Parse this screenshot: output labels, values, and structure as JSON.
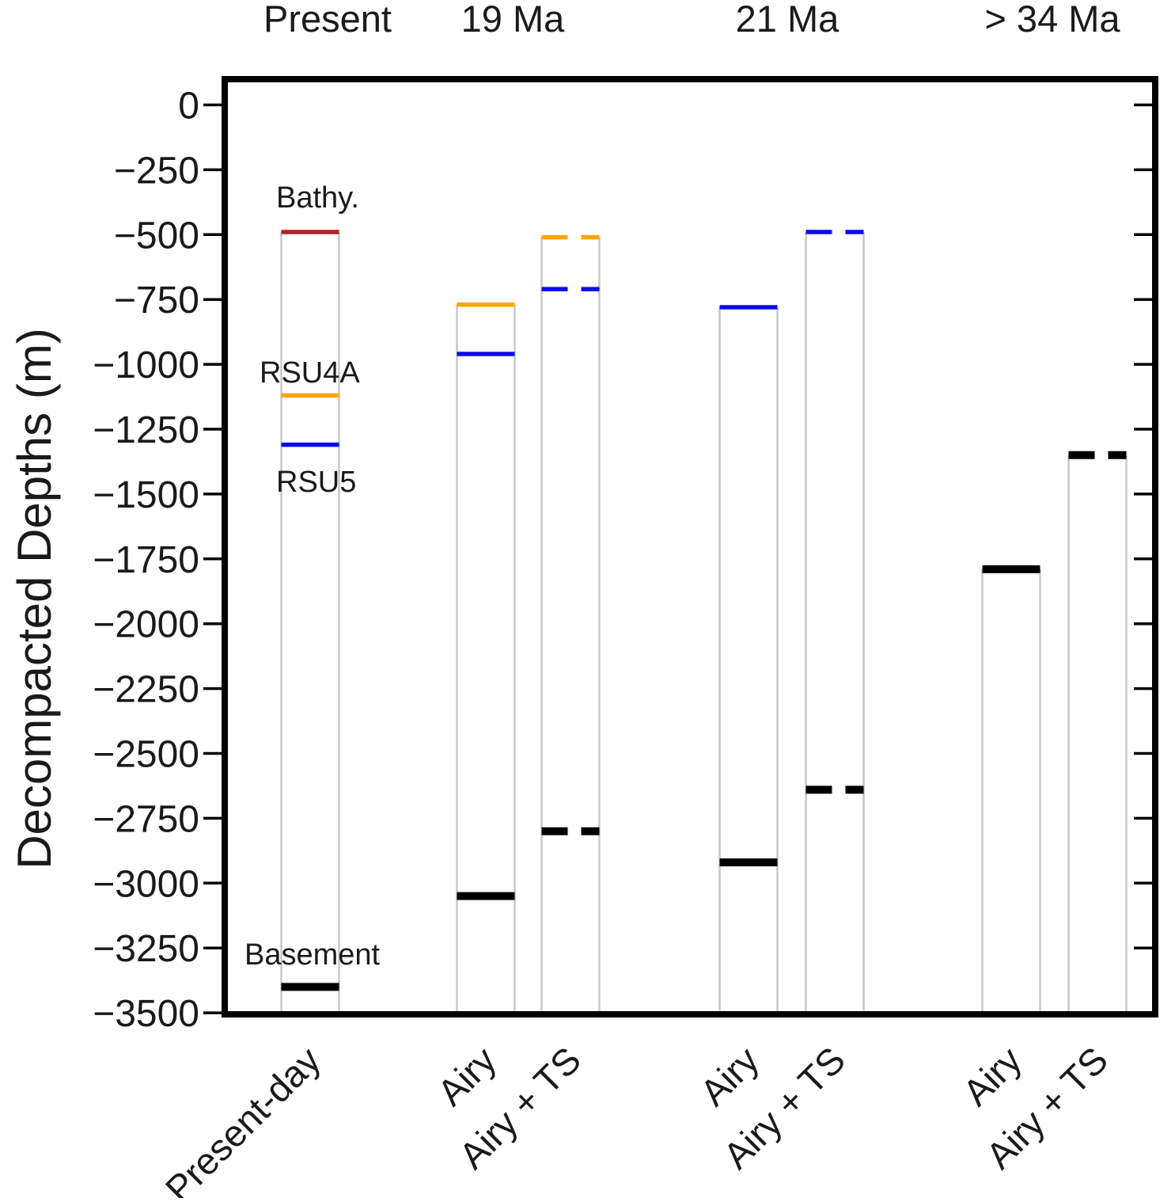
{
  "chart_data": {
    "type": "columns",
    "title": "",
    "ylabel": "Decompacted Depths (m)",
    "xlabel": "",
    "ylim": [
      110,
      -3505
    ],
    "grid": false,
    "legend": "none",
    "yticks": [
      0,
      -250,
      -500,
      -750,
      -1000,
      -1250,
      -1500,
      -1750,
      -2000,
      -2250,
      -2500,
      -2750,
      -3000,
      -3250,
      -3500
    ],
    "y_tick_labels": [
      "0",
      "−250",
      "−500",
      "−750",
      "−1000",
      "−1250",
      "−1500",
      "−1750",
      "−2000",
      "−2250",
      "−2500",
      "−2750",
      "−3000",
      "−3250",
      "−3500"
    ],
    "colors": {
      "bathymetry_line": "#b22222",
      "bathymetry_label": "#7c4a1e",
      "rsu4a": "#ffa500",
      "rsu5": "#0b0bee",
      "basement": "#000000",
      "column_outline": "#c8c8c8",
      "axis": "#000000"
    },
    "annotations": [
      {
        "text": "Bathy.",
        "color_key": "bathymetry_label"
      },
      {
        "text": "RSU4A",
        "color_key": "rsu4a"
      },
      {
        "text": "RSU5",
        "color_key": "rsu5"
      },
      {
        "text": "Basement",
        "color_key": "basement"
      }
    ],
    "groups": [
      {
        "age_label": "Present",
        "columns": [
          {
            "label": "Present-day",
            "line_style": "solid",
            "horizons": [
              {
                "name": "Bathy.",
                "color_key": "bathymetry_line",
                "depth_m": -490
              },
              {
                "name": "RSU4A",
                "color_key": "rsu4a",
                "depth_m": -1120
              },
              {
                "name": "RSU5",
                "color_key": "rsu5",
                "depth_m": -1310
              },
              {
                "name": "Basement",
                "color_key": "basement",
                "depth_m": -3400
              }
            ]
          }
        ]
      },
      {
        "age_label": "19 Ma",
        "columns": [
          {
            "label": "Airy",
            "line_style": "solid",
            "horizons": [
              {
                "name": "RSU4A",
                "color_key": "rsu4a",
                "depth_m": -770
              },
              {
                "name": "RSU5",
                "color_key": "rsu5",
                "depth_m": -960
              },
              {
                "name": "Basement",
                "color_key": "basement",
                "depth_m": -3050
              }
            ]
          },
          {
            "label": "Airy + TS",
            "line_style": "dashed",
            "horizons": [
              {
                "name": "RSU4A",
                "color_key": "rsu4a",
                "depth_m": -510
              },
              {
                "name": "RSU5",
                "color_key": "rsu5",
                "depth_m": -710
              },
              {
                "name": "Basement",
                "color_key": "basement",
                "depth_m": -2800
              }
            ]
          }
        ]
      },
      {
        "age_label": "21 Ma",
        "columns": [
          {
            "label": "Airy",
            "line_style": "solid",
            "horizons": [
              {
                "name": "RSU5",
                "color_key": "rsu5",
                "depth_m": -780
              },
              {
                "name": "Basement",
                "color_key": "basement",
                "depth_m": -2920
              }
            ]
          },
          {
            "label": "Airy + TS",
            "line_style": "dashed",
            "horizons": [
              {
                "name": "RSU5",
                "color_key": "rsu5",
                "depth_m": -490
              },
              {
                "name": "Basement",
                "color_key": "basement",
                "depth_m": -2640
              }
            ]
          }
        ]
      },
      {
        "age_label": "> 34 Ma",
        "columns": [
          {
            "label": "Airy",
            "line_style": "solid",
            "horizons": [
              {
                "name": "Basement",
                "color_key": "basement",
                "depth_m": -1790
              }
            ]
          },
          {
            "label": "Airy + TS",
            "line_style": "dashed",
            "horizons": [
              {
                "name": "Basement",
                "color_key": "basement",
                "depth_m": -1350
              }
            ]
          }
        ]
      }
    ]
  }
}
